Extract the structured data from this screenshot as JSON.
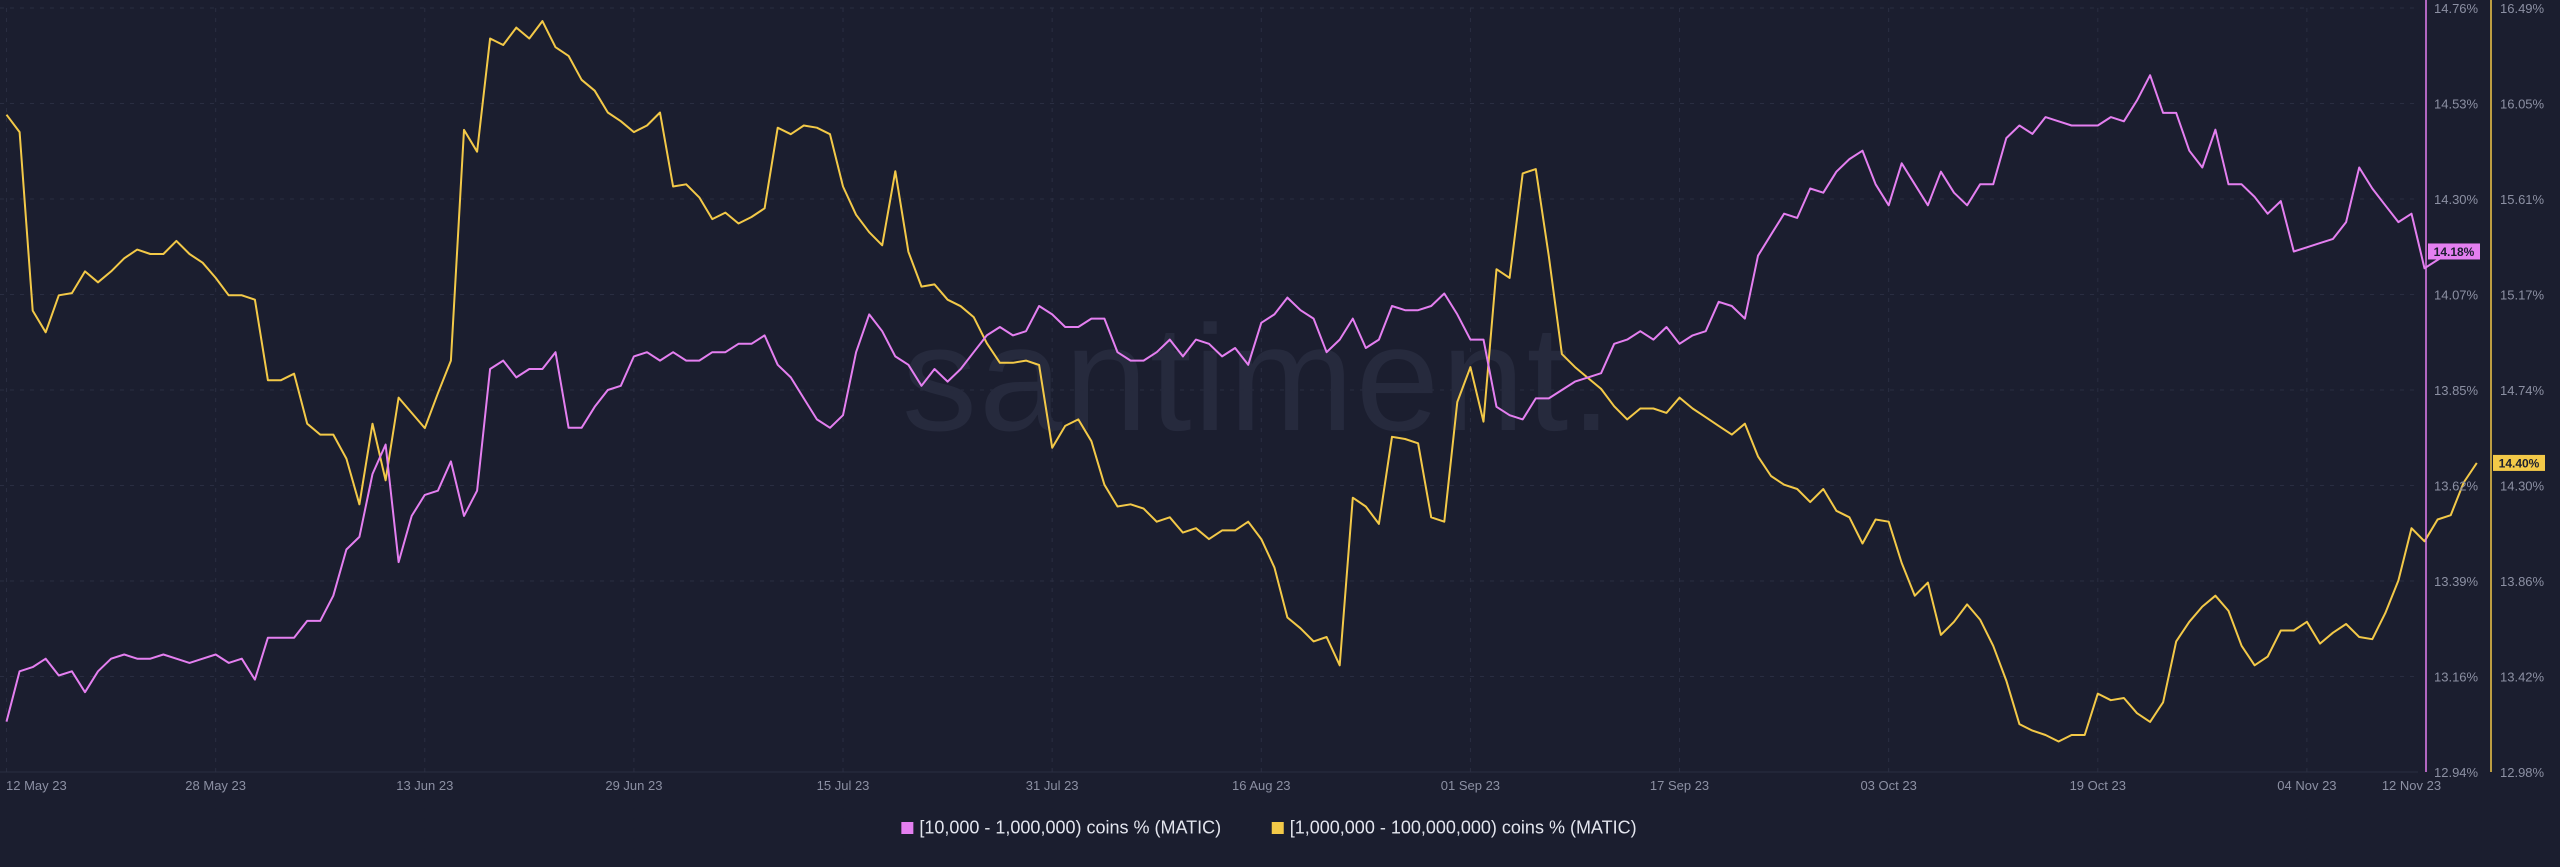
{
  "watermark": "santiment.",
  "colors": {
    "background": "#1b1e2f",
    "grid": "#2a2e42",
    "tick": "#8c90a3",
    "series_a": "#e47ff0",
    "series_b": "#f3c948"
  },
  "chart_data": {
    "type": "line",
    "x_ticks": [
      "12 May 23",
      "28 May 23",
      "13 Jun 23",
      "29 Jun 23",
      "15 Jul 23",
      "31 Jul 23",
      "16 Aug 23",
      "01 Sep 23",
      "17 Sep 23",
      "03 Oct 23",
      "19 Oct 23",
      "04 Nov 23",
      "12 Nov 23"
    ],
    "x_tick_days": [
      0,
      16,
      32,
      48,
      64,
      80,
      96,
      112,
      128,
      144,
      160,
      176,
      184
    ],
    "x_range_days": [
      -0.5,
      184.5
    ],
    "grid": true,
    "legend_position": "bottom-center",
    "axes": {
      "left": {
        "ticks": [
          "14.76%",
          "14.53%",
          "14.30%",
          "14.07%",
          "13.85%",
          "13.62%",
          "13.39%",
          "13.16%",
          "12.94%"
        ],
        "range": [
          12.94,
          14.76
        ]
      },
      "right": {
        "ticks": [
          "16.49%",
          "16.05%",
          "15.61%",
          "15.17%",
          "14.74%",
          "14.30%",
          "13.86%",
          "13.42%",
          "12.98%"
        ],
        "range": [
          12.98,
          16.49
        ]
      }
    },
    "series": [
      {
        "name": "[10,000 - 1,000,000) coins % (MATIC)",
        "axis": "left",
        "color": "#e47ff0",
        "last_label": "14.18%",
        "values": [
          13.06,
          13.18,
          13.19,
          13.21,
          13.17,
          13.18,
          13.13,
          13.18,
          13.21,
          13.22,
          13.21,
          13.21,
          13.22,
          13.21,
          13.2,
          13.21,
          13.22,
          13.2,
          13.21,
          13.16,
          13.26,
          13.26,
          13.26,
          13.3,
          13.3,
          13.36,
          13.47,
          13.5,
          13.65,
          13.72,
          13.44,
          13.55,
          13.6,
          13.61,
          13.68,
          13.55,
          13.61,
          13.9,
          13.92,
          13.88,
          13.9,
          13.9,
          13.94,
          13.76,
          13.76,
          13.81,
          13.85,
          13.86,
          13.93,
          13.94,
          13.92,
          13.94,
          13.92,
          13.92,
          13.94,
          13.94,
          13.96,
          13.96,
          13.98,
          13.91,
          13.88,
          13.83,
          13.78,
          13.76,
          13.79,
          13.94,
          14.03,
          13.99,
          13.93,
          13.91,
          13.86,
          13.9,
          13.87,
          13.9,
          13.94,
          13.98,
          14.0,
          13.98,
          13.99,
          14.05,
          14.03,
          14.0,
          14.0,
          14.02,
          14.02,
          13.94,
          13.92,
          13.92,
          13.94,
          13.97,
          13.93,
          13.97,
          13.96,
          13.93,
          13.95,
          13.91,
          14.01,
          14.03,
          14.07,
          14.04,
          14.02,
          13.94,
          13.97,
          14.02,
          13.95,
          13.97,
          14.05,
          14.04,
          14.04,
          14.05,
          14.08,
          14.03,
          13.97,
          13.97,
          13.81,
          13.79,
          13.78,
          13.83,
          13.83,
          13.85,
          13.87,
          13.88,
          13.89,
          13.96,
          13.97,
          13.99,
          13.97,
          14.0,
          13.96,
          13.98,
          13.99,
          14.06,
          14.05,
          14.02,
          14.17,
          14.22,
          14.27,
          14.26,
          14.33,
          14.32,
          14.37,
          14.4,
          14.42,
          14.34,
          14.29,
          14.39,
          14.34,
          14.29,
          14.37,
          14.32,
          14.29,
          14.34,
          14.34,
          14.45,
          14.48,
          14.46,
          14.5,
          14.49,
          14.48,
          14.48,
          14.48,
          14.5,
          14.49,
          14.54,
          14.6,
          14.51,
          14.51,
          14.42,
          14.38,
          14.47,
          14.34,
          14.34,
          14.31,
          14.27,
          14.3,
          14.18,
          14.19,
          14.2,
          14.21,
          14.25,
          14.38,
          14.33,
          14.29,
          14.25,
          14.27,
          14.14,
          14.16,
          14.18,
          14.18
        ]
      },
      {
        "name": "[1,000,000 - 100,000,000) coins % (MATIC)",
        "axis": "right",
        "color": "#f3c948",
        "last_label": "14.40%",
        "values": [
          16.0,
          15.92,
          15.1,
          15.0,
          15.17,
          15.18,
          15.28,
          15.23,
          15.28,
          15.34,
          15.38,
          15.36,
          15.36,
          15.42,
          15.36,
          15.32,
          15.25,
          15.17,
          15.17,
          15.15,
          14.78,
          14.78,
          14.81,
          14.58,
          14.53,
          14.53,
          14.42,
          14.21,
          14.58,
          14.32,
          14.7,
          14.63,
          14.56,
          14.72,
          14.87,
          15.93,
          15.83,
          16.35,
          16.32,
          16.4,
          16.35,
          16.43,
          16.31,
          16.27,
          16.16,
          16.11,
          16.01,
          15.97,
          15.92,
          15.95,
          16.01,
          15.67,
          15.68,
          15.62,
          15.52,
          15.55,
          15.5,
          15.53,
          15.57,
          15.94,
          15.91,
          15.95,
          15.94,
          15.91,
          15.67,
          15.54,
          15.46,
          15.4,
          15.74,
          15.37,
          15.21,
          15.22,
          15.15,
          15.12,
          15.07,
          14.95,
          14.86,
          14.86,
          14.87,
          14.85,
          14.47,
          14.57,
          14.6,
          14.5,
          14.3,
          14.2,
          14.21,
          14.19,
          14.13,
          14.15,
          14.08,
          14.1,
          14.05,
          14.09,
          14.09,
          14.13,
          14.05,
          13.92,
          13.69,
          13.64,
          13.58,
          13.6,
          13.47,
          14.24,
          14.2,
          14.12,
          14.52,
          14.51,
          14.49,
          14.15,
          14.13,
          14.68,
          14.84,
          14.59,
          15.29,
          15.25,
          15.73,
          15.75,
          15.35,
          14.9,
          14.84,
          14.79,
          14.74,
          14.66,
          14.6,
          14.65,
          14.65,
          14.63,
          14.7,
          14.65,
          14.61,
          14.57,
          14.53,
          14.58,
          14.43,
          14.34,
          14.3,
          14.28,
          14.22,
          14.28,
          14.18,
          14.15,
          14.03,
          14.14,
          14.13,
          13.94,
          13.79,
          13.85,
          13.61,
          13.67,
          13.75,
          13.68,
          13.56,
          13.4,
          13.2,
          13.17,
          13.15,
          13.12,
          13.15,
          13.15,
          13.34,
          13.31,
          13.32,
          13.25,
          13.21,
          13.3,
          13.58,
          13.67,
          13.74,
          13.79,
          13.72,
          13.56,
          13.47,
          13.51,
          13.63,
          13.63,
          13.67,
          13.57,
          13.62,
          13.66,
          13.6,
          13.59,
          13.71,
          13.86,
          14.1,
          14.04,
          14.14,
          14.16,
          14.31,
          14.4
        ]
      }
    ]
  }
}
